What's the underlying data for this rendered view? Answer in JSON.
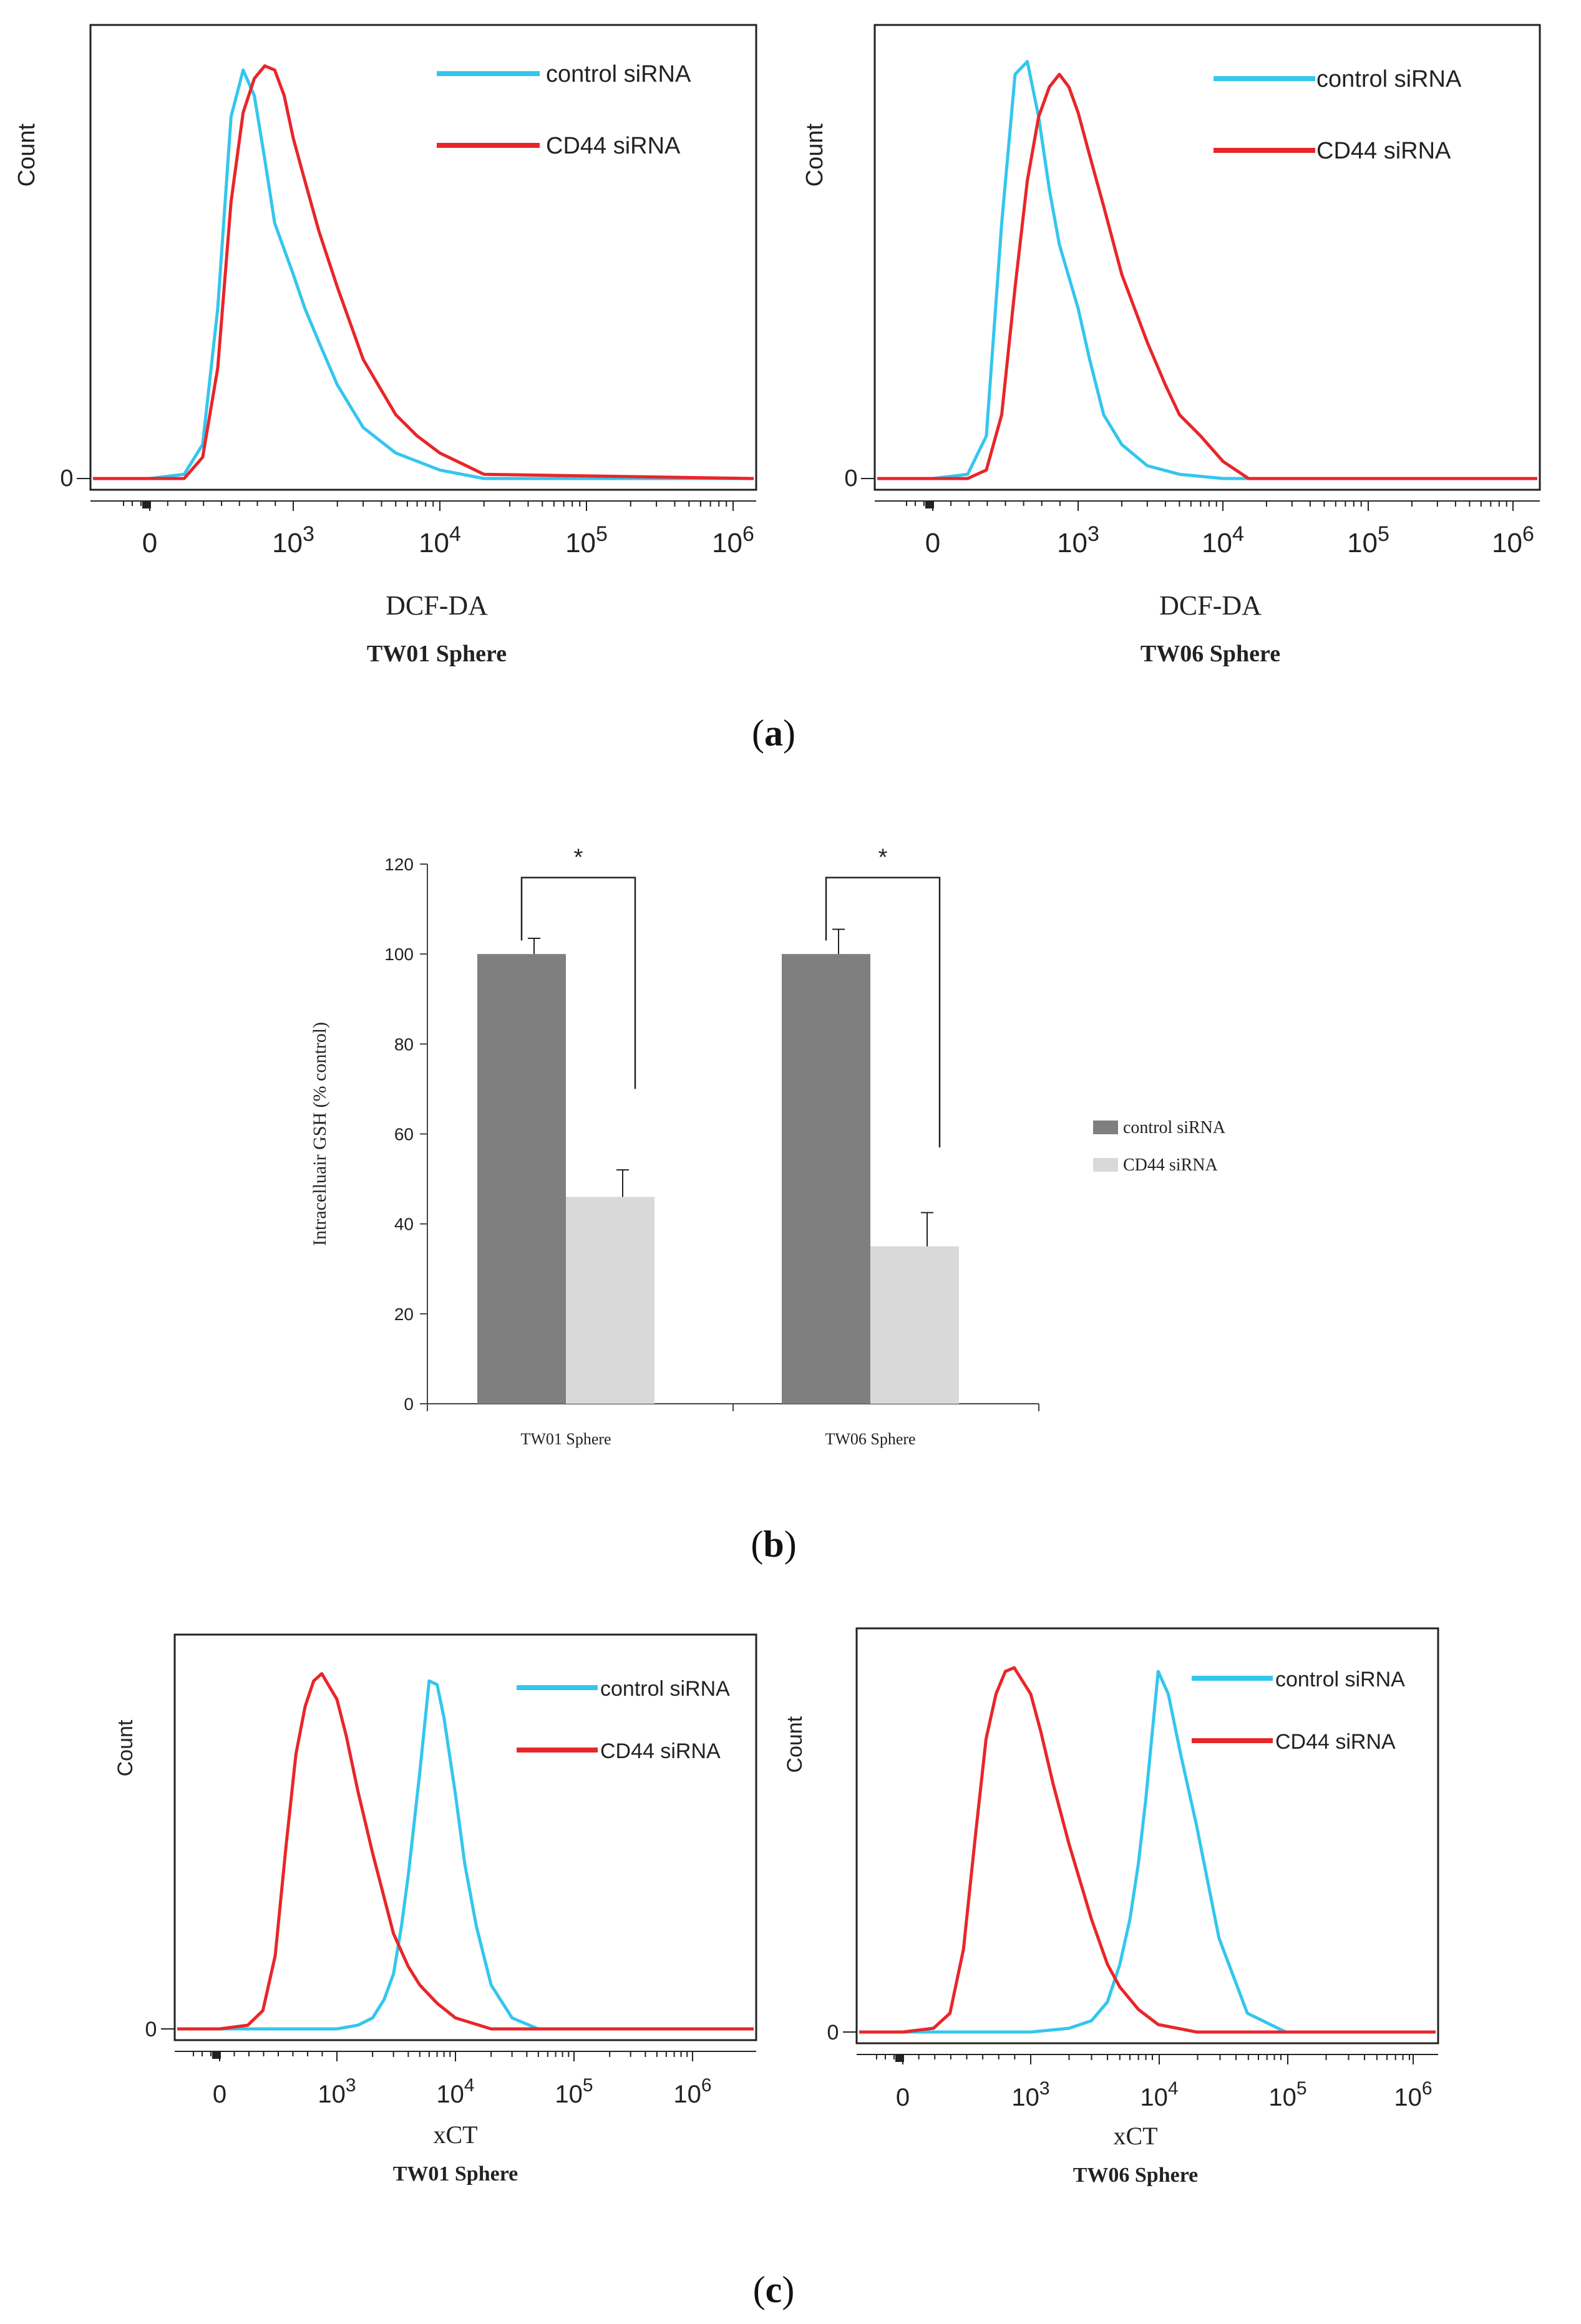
{
  "panel_labels": {
    "a": "a",
    "b": "b",
    "c": "c"
  },
  "colors": {
    "control": "#33c6ee",
    "cd44": "#e8262a",
    "bar_control": "#7f7f7f",
    "bar_cd44": "#d9d9d9"
  },
  "chart_data": [
    {
      "id": "a-left",
      "type": "line",
      "title": "TW01 Sphere",
      "xlabel": "DCF-DA",
      "ylabel": "Count",
      "x_scale": "biexponential",
      "xlim": [
        -200,
        1000000
      ],
      "x_ticks": [
        {
          "base": "0",
          "exp": ""
        },
        {
          "base": "10",
          "exp": "3"
        },
        {
          "base": "10",
          "exp": "4"
        },
        {
          "base": "10",
          "exp": "5"
        },
        {
          "base": "10",
          "exp": "6"
        }
      ],
      "y_ticks": [
        "0"
      ],
      "ylim": [
        0,
        100
      ],
      "legend": [
        "control siRNA",
        "CD44 siRNA"
      ],
      "series": [
        {
          "name": "control siRNA",
          "x": [
            -200,
            0,
            100,
            200,
            300,
            400,
            500,
            600,
            700,
            800,
            1000,
            1200,
            1500,
            2000,
            3000,
            5000,
            10000,
            20000,
            1000000
          ],
          "y": [
            0,
            0,
            1,
            8,
            40,
            85,
            96,
            90,
            75,
            60,
            48,
            40,
            32,
            22,
            12,
            6,
            2,
            0,
            0
          ]
        },
        {
          "name": "CD44 siRNA",
          "x": [
            -200,
            0,
            100,
            200,
            300,
            400,
            500,
            600,
            700,
            800,
            900,
            1000,
            1200,
            1500,
            2000,
            3000,
            5000,
            7000,
            10000,
            20000,
            1000000
          ],
          "y": [
            0,
            0,
            0,
            5,
            26,
            65,
            86,
            94,
            97,
            96,
            90,
            80,
            70,
            58,
            45,
            28,
            15,
            10,
            6,
            1,
            0
          ]
        }
      ]
    },
    {
      "id": "a-right",
      "type": "line",
      "title": "TW06 Sphere",
      "xlabel": "DCF-DA",
      "ylabel": "Count",
      "x_scale": "biexponential",
      "xlim": [
        -200,
        1000000
      ],
      "x_ticks": [
        {
          "base": "0",
          "exp": ""
        },
        {
          "base": "10",
          "exp": "3"
        },
        {
          "base": "10",
          "exp": "4"
        },
        {
          "base": "10",
          "exp": "5"
        },
        {
          "base": "10",
          "exp": "6"
        }
      ],
      "y_ticks": [
        "0"
      ],
      "ylim": [
        0,
        100
      ],
      "legend": [
        "control siRNA",
        "CD44 siRNA"
      ],
      "series": [
        {
          "name": "control siRNA",
          "x": [
            -200,
            0,
            100,
            200,
            300,
            400,
            500,
            600,
            700,
            800,
            1000,
            1200,
            1500,
            2000,
            3000,
            5000,
            10000,
            1000000
          ],
          "y": [
            0,
            0,
            1,
            10,
            60,
            95,
            98,
            85,
            68,
            55,
            40,
            28,
            15,
            8,
            3,
            1,
            0,
            0
          ]
        },
        {
          "name": "CD44 siRNA",
          "x": [
            -200,
            0,
            100,
            200,
            300,
            400,
            500,
            600,
            700,
            800,
            900,
            1000,
            1200,
            1500,
            2000,
            3000,
            4000,
            5000,
            7000,
            10000,
            15000,
            1000000
          ],
          "y": [
            0,
            0,
            0,
            2,
            15,
            45,
            70,
            85,
            92,
            95,
            92,
            86,
            76,
            64,
            48,
            32,
            22,
            15,
            10,
            4,
            0,
            0
          ]
        }
      ]
    },
    {
      "id": "b",
      "type": "bar",
      "title": "",
      "xlabel": "",
      "ylabel": "Intracelluair GSH (% control)",
      "categories": [
        "TW01 Sphere",
        "TW06 Sphere"
      ],
      "series": [
        {
          "name": "control siRNA",
          "values": [
            100,
            100
          ],
          "errors": [
            3.5,
            5.5
          ]
        },
        {
          "name": "CD44 siRNA",
          "values": [
            46,
            35
          ],
          "errors": [
            6,
            7.5
          ]
        }
      ],
      "ylim": [
        0,
        120
      ],
      "y_ticks": [
        "0",
        "20",
        "40",
        "60",
        "80",
        "100",
        "120"
      ],
      "significance": [
        {
          "category": 0,
          "label": "*",
          "y": 117,
          "left_end": 103,
          "right_end": 70
        },
        {
          "category": 1,
          "label": "*",
          "y": 117,
          "left_end": 103,
          "right_end": 57
        }
      ],
      "legend": [
        "control siRNA",
        "CD44 siRNA"
      ]
    },
    {
      "id": "c-left",
      "type": "line",
      "title": "TW01 Sphere",
      "xlabel": "xCT",
      "ylabel": "Count",
      "x_scale": "biexponential",
      "xlim": [
        -200,
        1000000
      ],
      "x_ticks": [
        {
          "base": "0",
          "exp": ""
        },
        {
          "base": "10",
          "exp": "3"
        },
        {
          "base": "10",
          "exp": "4"
        },
        {
          "base": "10",
          "exp": "5"
        },
        {
          "base": "10",
          "exp": "6"
        }
      ],
      "y_ticks": [
        "0"
      ],
      "ylim": [
        0,
        100
      ],
      "legend": [
        "control siRNA",
        "CD44 siRNA"
      ],
      "series": [
        {
          "name": "control siRNA",
          "x": [
            -200,
            0,
            1000,
            1500,
            2000,
            2500,
            3000,
            3500,
            4000,
            5000,
            6000,
            7000,
            8000,
            10000,
            12000,
            15000,
            20000,
            30000,
            50000,
            1000000
          ],
          "y": [
            0,
            0,
            0,
            1,
            3,
            8,
            15,
            28,
            42,
            70,
            95,
            94,
            85,
            64,
            45,
            28,
            12,
            3,
            0,
            0
          ]
        },
        {
          "name": "CD44 siRNA",
          "x": [
            -200,
            0,
            100,
            200,
            300,
            400,
            500,
            600,
            700,
            800,
            1000,
            1200,
            1500,
            2000,
            3000,
            4000,
            5000,
            7000,
            10000,
            20000,
            1000000
          ],
          "y": [
            0,
            0,
            1,
            5,
            20,
            50,
            75,
            88,
            95,
            97,
            90,
            80,
            65,
            48,
            26,
            17,
            12,
            7,
            3,
            0,
            0
          ]
        }
      ]
    },
    {
      "id": "c-right",
      "type": "line",
      "title": "TW06 Sphere",
      "xlabel": "xCT",
      "ylabel": "Count",
      "x_scale": "biexponential",
      "xlim": [
        -200,
        1000000
      ],
      "x_ticks": [
        {
          "base": "0",
          "exp": ""
        },
        {
          "base": "10",
          "exp": "3"
        },
        {
          "base": "10",
          "exp": "4"
        },
        {
          "base": "10",
          "exp": "5"
        },
        {
          "base": "10",
          "exp": "6"
        }
      ],
      "y_ticks": [
        "0"
      ],
      "ylim": [
        0,
        100
      ],
      "legend": [
        "control siRNA",
        "CD44 siRNA"
      ],
      "series": [
        {
          "name": "control siRNA",
          "x": [
            -200,
            0,
            1000,
            2000,
            3000,
            4000,
            5000,
            6000,
            7000,
            8000,
            10000,
            12000,
            15000,
            20000,
            30000,
            50000,
            100000,
            1000000
          ],
          "y": [
            0,
            0,
            0,
            1,
            3,
            8,
            18,
            30,
            45,
            62,
            96,
            90,
            74,
            55,
            25,
            5,
            0,
            0
          ]
        },
        {
          "name": "CD44 siRNA",
          "x": [
            -200,
            0,
            100,
            200,
            300,
            400,
            500,
            600,
            700,
            800,
            1000,
            1200,
            1500,
            2000,
            3000,
            4000,
            5000,
            7000,
            10000,
            20000,
            1000000
          ],
          "y": [
            0,
            0,
            1,
            5,
            22,
            52,
            78,
            90,
            96,
            97,
            90,
            80,
            66,
            50,
            30,
            18,
            12,
            6,
            2,
            0,
            0
          ]
        }
      ]
    }
  ]
}
